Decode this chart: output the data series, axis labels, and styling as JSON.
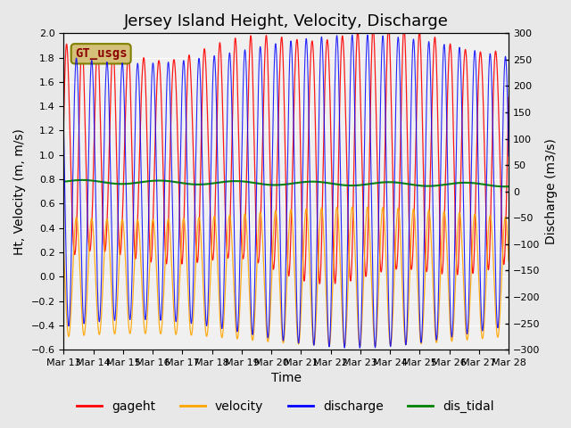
{
  "title": "Jersey Island Height, Velocity, Discharge",
  "xlabel": "Time",
  "ylabel_left": "Ht, Velocity (m, m/s)",
  "ylabel_right": "Discharge (m3/s)",
  "ylim_left": [
    -0.6,
    2.0
  ],
  "ylim_right": [
    -300,
    300
  ],
  "xlim": [
    0,
    15
  ],
  "xtick_labels": [
    "Mar 13",
    "Mar 14",
    "Mar 15",
    "Mar 16",
    "Mar 17",
    "Mar 18",
    "Mar 19",
    "Mar 20",
    "Mar 21",
    "Mar 22",
    "Mar 23",
    "Mar 24",
    "Mar 25",
    "Mar 26",
    "Mar 27",
    "Mar 28"
  ],
  "legend_labels": [
    "gageht",
    "velocity",
    "discharge",
    "dis_tidal"
  ],
  "legend_colors": [
    "red",
    "orange",
    "blue",
    "green"
  ],
  "gt_usgs_label": "GT_usgs",
  "gt_usgs_bg": "#d4c078",
  "gt_usgs_fg": "darkred",
  "background_color": "#e8e8e8",
  "plot_bg": "#f0f0f0",
  "grid_color": "white",
  "title_fontsize": 13,
  "axis_fontsize": 10,
  "tick_fontsize": 8,
  "legend_fontsize": 10,
  "tidal_period_hours": 12.4,
  "gageht_mean": 1.0,
  "gageht_amp": 0.92,
  "velocity_amp": 0.52,
  "discharge_amp": 270,
  "dis_tidal_mean": 0.78,
  "dis_tidal_slope": -0.025
}
